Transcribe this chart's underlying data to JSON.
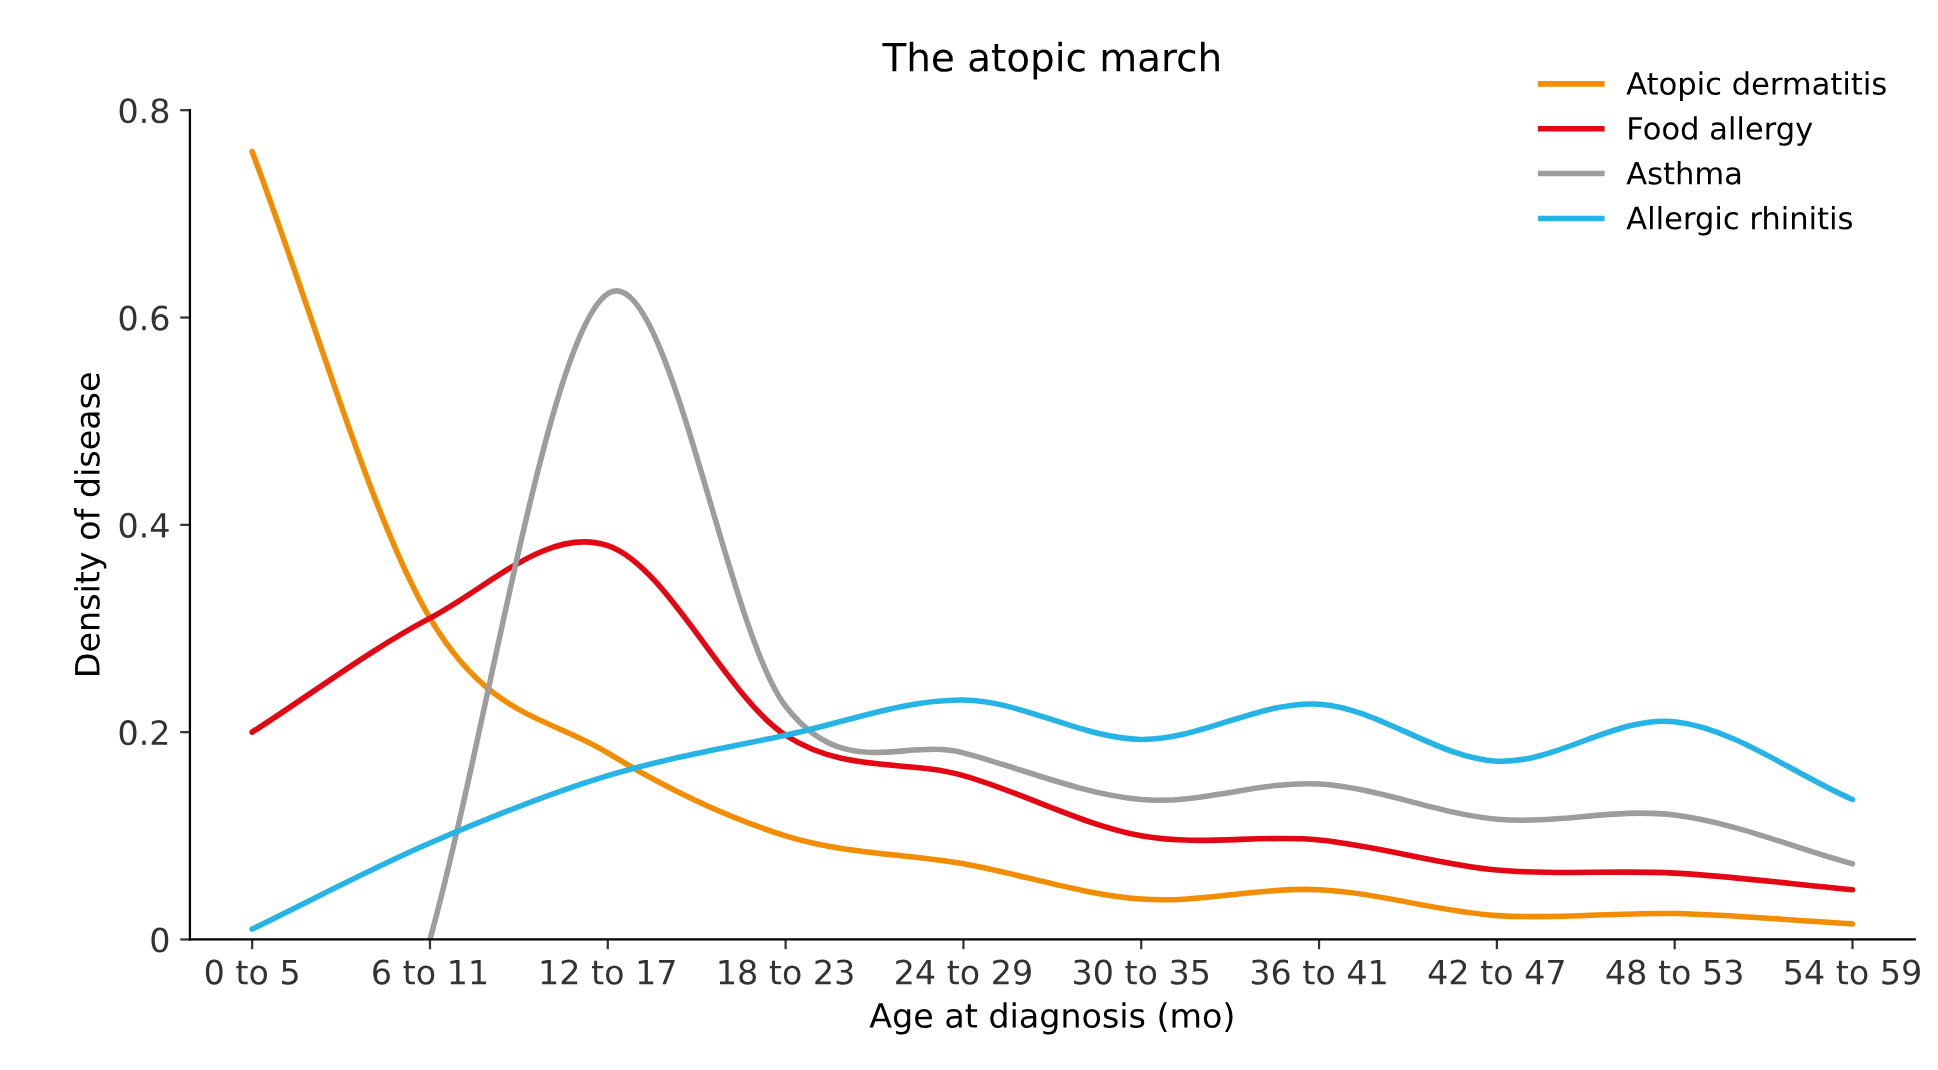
{
  "chart_data": {
    "type": "line",
    "title": "The atopic march",
    "xlabel": "Age at diagnosis (mo)",
    "ylabel": "Density of disease",
    "categories": [
      "0 to 5",
      "6 to 11",
      "12 to 17",
      "18 to 23",
      "24 to 29",
      "30 to 35",
      "36 to 41",
      "42 to 47",
      "48 to 53",
      "54 to 59"
    ],
    "series": [
      {
        "name": "Atopic dermatitis",
        "color": "#f28c00",
        "values": [
          0.76,
          0.31,
          0.18,
          0.1,
          0.073,
          0.039,
          0.048,
          0.023,
          0.025,
          0.015
        ]
      },
      {
        "name": "Food allergy",
        "color": "#e30613",
        "values": [
          0.2,
          0.31,
          0.38,
          0.197,
          0.158,
          0.1,
          0.096,
          0.067,
          0.064,
          0.048
        ]
      },
      {
        "name": "Asthma",
        "color": "#9d9d9c",
        "values": [
          null,
          0,
          0.623,
          0.225,
          0.18,
          0.135,
          0.15,
          0.116,
          0.12,
          0.073
        ]
      },
      {
        "name": "Allergic rhinitis",
        "color": "#26b4e6",
        "values": [
          0.01,
          0.093,
          0.158,
          0.197,
          0.231,
          0.193,
          0.227,
          0.172,
          0.21,
          0.135
        ]
      }
    ],
    "ylim": [
      0,
      0.8
    ],
    "yticks": [
      0,
      0.2,
      0.4,
      0.6,
      0.8
    ],
    "grid": false,
    "legend": "top right",
    "marker": "none",
    "line_style": "solid"
  }
}
